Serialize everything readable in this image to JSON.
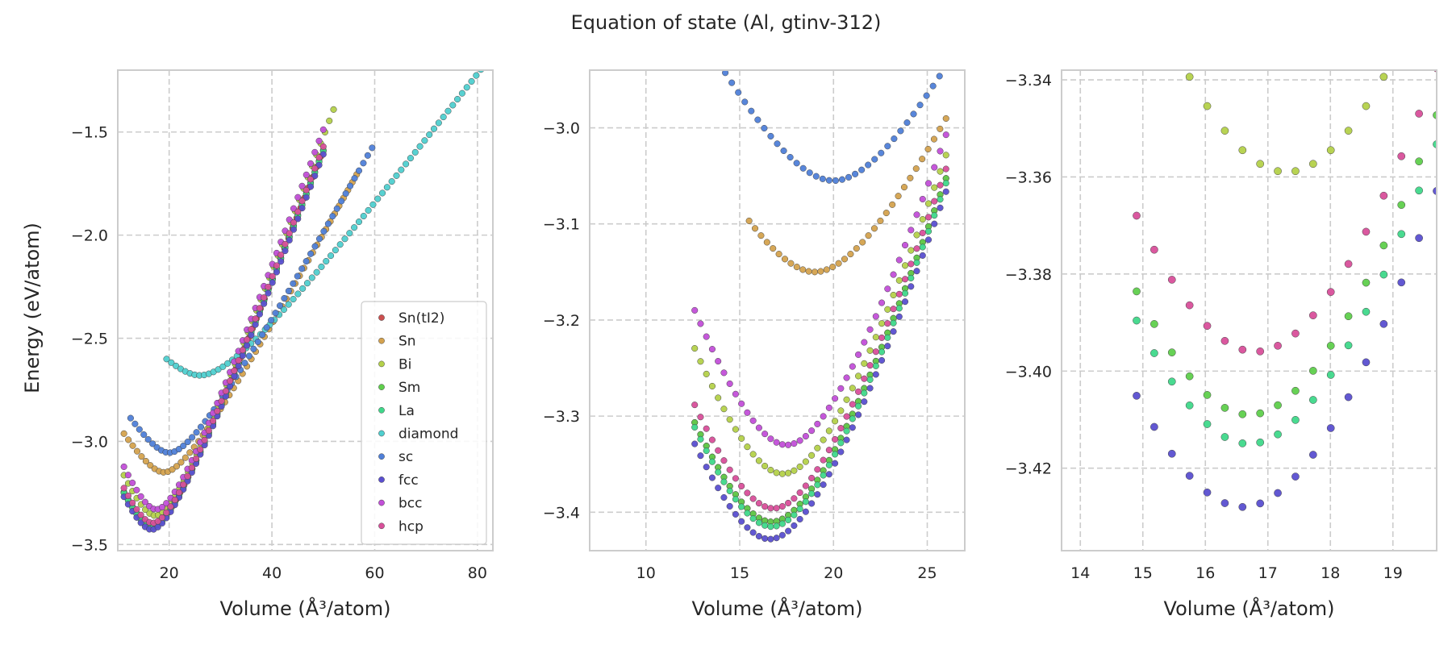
{
  "title": "Equation of state (Al, gtinv-312)",
  "ylabel": "Energy (eV/atom)",
  "xlabel": "Volume (Å³/atom)",
  "colors": {
    "Sn(tI2)": "#cc4f4f",
    "Sn": "#d4a24e",
    "Bi": "#b4d14a",
    "Sm": "#5fcf4c",
    "La": "#3fd88a",
    "diamond": "#4fcfcf",
    "sc": "#4f7fd8",
    "fcc": "#5a4fd0",
    "bcc": "#c24fd8",
    "hcp": "#d84f9a"
  },
  "chart_data": [
    {
      "type": "scatter",
      "title": "",
      "xlabel": "Volume (Å³/atom)",
      "ylabel": "Energy (eV/atom)",
      "xlim": [
        10,
        83
      ],
      "ylim": [
        -3.53,
        -1.2
      ],
      "xticks": [
        20,
        40,
        60,
        80
      ],
      "yticks": [
        -3.5,
        -3.0,
        -2.5,
        -2.0,
        -1.5
      ],
      "grid": true,
      "legend": "lower right",
      "series": [
        {
          "name": "Sn(tI2)",
          "model": {
            "E0": -3.41,
            "V0": 16.7,
            "k": 0.01,
            "p": 0.85,
            "vmin": 11.2,
            "vmax": 49.5,
            "n": 50
          }
        },
        {
          "name": "Sn",
          "model": {
            "E0": -3.15,
            "V0": 19.0,
            "k": 0.0065,
            "p": 0.9,
            "vmin": 11.2,
            "vmax": 56.5,
            "n": 54
          }
        },
        {
          "name": "Bi",
          "model": {
            "E0": -3.36,
            "V0": 17.3,
            "k": 0.01,
            "p": 0.85,
            "vmin": 11.2,
            "vmax": 52.0,
            "n": 50
          }
        },
        {
          "name": "Sm",
          "model": {
            "E0": -3.41,
            "V0": 16.7,
            "k": 0.01,
            "p": 0.85,
            "vmin": 11.2,
            "vmax": 50.0,
            "n": 48
          }
        },
        {
          "name": "La",
          "model": {
            "E0": -3.415,
            "V0": 16.7,
            "k": 0.01,
            "p": 0.85,
            "vmin": 11.2,
            "vmax": 50.0,
            "n": 48
          }
        },
        {
          "name": "diamond",
          "model": {
            "E0": -2.68,
            "V0": 26.0,
            "k": 0.003,
            "p": 0.8,
            "vmin": 19.5,
            "vmax": 82.5,
            "n": 70
          }
        },
        {
          "name": "sc",
          "model": {
            "E0": -3.055,
            "V0": 20.0,
            "k": 0.006,
            "p": 0.9,
            "vmin": 12.5,
            "vmax": 59.5,
            "n": 56
          }
        },
        {
          "name": "fcc",
          "model": {
            "E0": -3.428,
            "V0": 16.6,
            "k": 0.01,
            "p": 0.85,
            "vmin": 11.2,
            "vmax": 50.0,
            "n": 48
          }
        },
        {
          "name": "bcc",
          "model": {
            "E0": -3.33,
            "V0": 17.5,
            "k": 0.01,
            "p": 0.85,
            "vmin": 11.2,
            "vmax": 50.0,
            "n": 48
          }
        },
        {
          "name": "hcp",
          "model": {
            "E0": -3.396,
            "V0": 16.8,
            "k": 0.01,
            "p": 0.85,
            "vmin": 11.2,
            "vmax": 50.0,
            "n": 48
          }
        }
      ]
    },
    {
      "type": "scatter",
      "title": "",
      "xlabel": "Volume (Å³/atom)",
      "ylabel": "",
      "xlim": [
        7,
        27
      ],
      "ylim": [
        -3.44,
        -2.94
      ],
      "xticks": [
        10,
        15,
        20,
        25
      ],
      "yticks": [
        -3.4,
        -3.3,
        -3.2,
        -3.1,
        -3.0
      ],
      "grid": true,
      "legend": "none",
      "series": [
        {
          "name": "Sn(tI2)",
          "model": {
            "E0": -3.41,
            "V0": 16.7,
            "k": 0.01,
            "p": 0.85,
            "vmin": 12.6,
            "vmax": 26.0,
            "n": 44
          }
        },
        {
          "name": "Sn",
          "model": {
            "E0": -3.15,
            "V0": 19.0,
            "k": 0.0065,
            "p": 0.9,
            "vmin": 15.5,
            "vmax": 26.0,
            "n": 34
          }
        },
        {
          "name": "Bi",
          "model": {
            "E0": -3.36,
            "V0": 17.3,
            "k": 0.01,
            "p": 0.85,
            "vmin": 12.6,
            "vmax": 26.0,
            "n": 44
          }
        },
        {
          "name": "Sm",
          "model": {
            "E0": -3.41,
            "V0": 16.7,
            "k": 0.01,
            "p": 0.85,
            "vmin": 12.6,
            "vmax": 26.0,
            "n": 44
          }
        },
        {
          "name": "La",
          "model": {
            "E0": -3.415,
            "V0": 16.7,
            "k": 0.01,
            "p": 0.85,
            "vmin": 12.6,
            "vmax": 26.0,
            "n": 44
          }
        },
        {
          "name": "sc",
          "model": {
            "E0": -3.055,
            "V0": 20.0,
            "k": 0.006,
            "p": 0.9,
            "vmin": 12.5,
            "vmax": 26.0,
            "n": 40
          }
        },
        {
          "name": "fcc",
          "model": {
            "E0": -3.428,
            "V0": 16.6,
            "k": 0.01,
            "p": 0.85,
            "vmin": 12.6,
            "vmax": 26.0,
            "n": 44
          }
        },
        {
          "name": "bcc",
          "model": {
            "E0": -3.33,
            "V0": 17.5,
            "k": 0.01,
            "p": 0.85,
            "vmin": 12.6,
            "vmax": 26.0,
            "n": 44
          }
        },
        {
          "name": "hcp",
          "model": {
            "E0": -3.396,
            "V0": 16.8,
            "k": 0.01,
            "p": 0.85,
            "vmin": 12.6,
            "vmax": 26.0,
            "n": 44
          }
        }
      ]
    },
    {
      "type": "scatter",
      "title": "",
      "xlabel": "Volume (Å³/atom)",
      "ylabel": "",
      "xlim": [
        13.7,
        19.7
      ],
      "ylim": [
        -3.437,
        -3.338
      ],
      "xticks": [
        14,
        15,
        16,
        17,
        18,
        19
      ],
      "yticks": [
        -3.42,
        -3.4,
        -3.38,
        -3.36,
        -3.34
      ],
      "grid": true,
      "legend": "none",
      "series": [
        {
          "name": "Bi",
          "model": {
            "E0": -3.359,
            "V0": 17.3,
            "k": 0.01,
            "p": 0.85,
            "vmin": 14.9,
            "vmax": 19.7,
            "n": 18
          }
        },
        {
          "name": "Sm",
          "model": {
            "E0": -3.409,
            "V0": 16.7,
            "k": 0.01,
            "p": 0.85,
            "vmin": 14.9,
            "vmax": 19.7,
            "n": 18
          }
        },
        {
          "name": "La",
          "model": {
            "E0": -3.415,
            "V0": 16.7,
            "k": 0.01,
            "p": 0.85,
            "vmin": 14.9,
            "vmax": 19.7,
            "n": 18
          }
        },
        {
          "name": "fcc",
          "model": {
            "E0": -3.428,
            "V0": 16.6,
            "k": 0.01,
            "p": 0.85,
            "vmin": 14.9,
            "vmax": 19.7,
            "n": 18
          }
        },
        {
          "name": "hcp",
          "model": {
            "E0": -3.396,
            "V0": 16.8,
            "k": 0.01,
            "p": 0.85,
            "vmin": 14.9,
            "vmax": 19.7,
            "n": 18
          }
        }
      ]
    }
  ]
}
